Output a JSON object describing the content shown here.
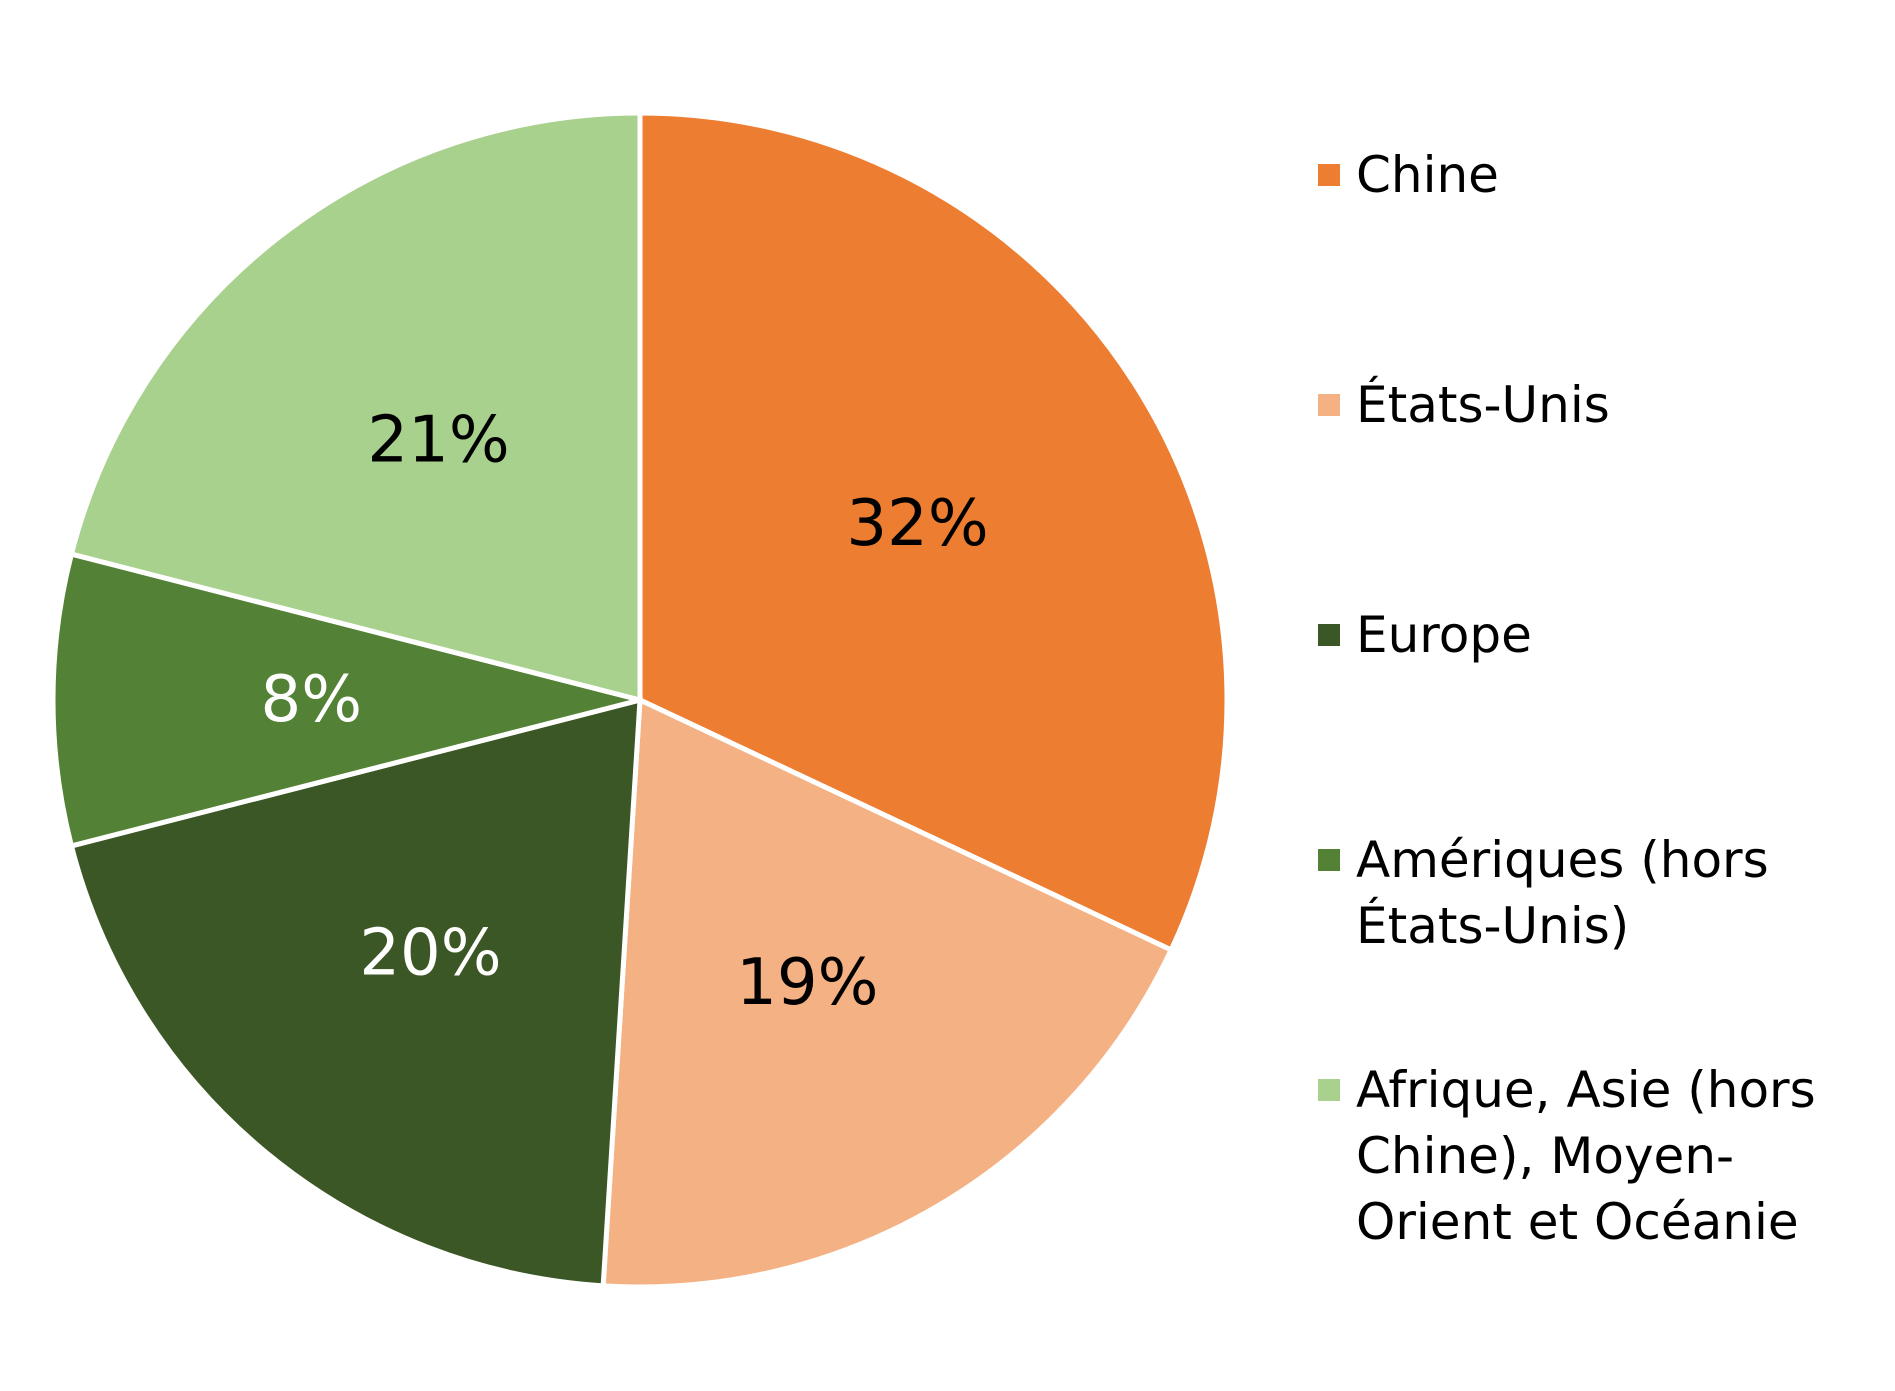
{
  "chart_data": {
    "type": "pie",
    "title": "",
    "slices": [
      {
        "name": "Chine",
        "value": 32,
        "label": "32%",
        "color": "#ED7D31",
        "label_color": "#000000"
      },
      {
        "name": "États-Unis",
        "value": 19,
        "label": "19%",
        "color": "#F4B183",
        "label_color": "#000000"
      },
      {
        "name": "Europe",
        "value": 20,
        "label": "20%",
        "color": "#3B5725",
        "label_color": "#ffffff"
      },
      {
        "name": "Amériques (hors États-Unis)",
        "value": 8,
        "label": "8%",
        "color": "#538135",
        "label_color": "#ffffff"
      },
      {
        "name": "Afrique, Asie (hors Chine), Moyen-Orient et Océanie",
        "value": 21,
        "label": "21%",
        "color": "#A9D18E",
        "label_color": "#000000"
      }
    ],
    "legend": {
      "placement": "right",
      "entries": [
        {
          "lines": [
            "Chine"
          ],
          "color": "#ED7D31"
        },
        {
          "lines": [
            "États-Unis"
          ],
          "color": "#F4B183"
        },
        {
          "lines": [
            "Europe"
          ],
          "color": "#3B5725"
        },
        {
          "lines": [
            "Amériques (hors",
            "États-Unis)"
          ],
          "color": "#538135"
        },
        {
          "lines": [
            "Afrique, Asie (hors",
            "Chine), Moyen-",
            "Orient et Océanie"
          ],
          "color": "#A9D18E"
        }
      ]
    }
  }
}
